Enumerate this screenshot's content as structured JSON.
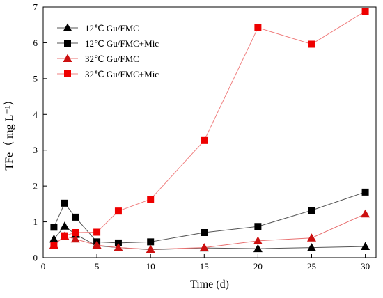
{
  "chart_data": {
    "type": "line",
    "xlabel": "Time (d)",
    "ylabel": "TFe（ mg  L⁻¹）",
    "xlim": [
      0,
      31
    ],
    "ylim": [
      0,
      7
    ],
    "xticks": [
      0,
      5,
      10,
      15,
      20,
      25,
      30
    ],
    "yticks": [
      0,
      1,
      2,
      3,
      4,
      5,
      6,
      7
    ],
    "grid": false,
    "legend_position": "top-left",
    "series": [
      {
        "name": "12℃  Gu/FMC",
        "marker": "triangle",
        "color": "#000000",
        "line_color": "#555555",
        "x": [
          1,
          2,
          3,
          5,
          7,
          10,
          15,
          20,
          25,
          30
        ],
        "y": [
          0.52,
          0.88,
          0.65,
          0.33,
          0.28,
          0.22,
          0.27,
          0.25,
          0.28,
          0.31
        ]
      },
      {
        "name": "12℃  Gu/FMC+Mic",
        "marker": "square",
        "color": "#000000",
        "line_color": "#555555",
        "x": [
          1,
          2,
          3,
          5,
          7,
          10,
          15,
          20,
          25,
          30
        ],
        "y": [
          0.85,
          1.52,
          1.13,
          0.44,
          0.41,
          0.44,
          0.7,
          0.87,
          1.32,
          1.83
        ]
      },
      {
        "name": "32℃  Gu/FMC",
        "marker": "triangle",
        "color": "#cc1010",
        "line_color": "#e87070",
        "x": [
          1,
          2,
          3,
          5,
          7,
          10,
          15,
          20,
          25,
          30
        ],
        "y": [
          0.35,
          0.6,
          0.52,
          0.35,
          0.28,
          0.23,
          0.28,
          0.47,
          0.55,
          1.22
        ]
      },
      {
        "name": "32℃  Gu/FMC+Mic",
        "marker": "square",
        "color": "#ee0000",
        "line_color": "#f08080",
        "x": [
          1,
          2,
          3,
          5,
          7,
          10,
          15,
          20,
          25,
          30
        ],
        "y": [
          0.35,
          0.61,
          0.7,
          0.71,
          1.3,
          1.63,
          3.27,
          6.42,
          5.96,
          6.88
        ]
      }
    ]
  }
}
